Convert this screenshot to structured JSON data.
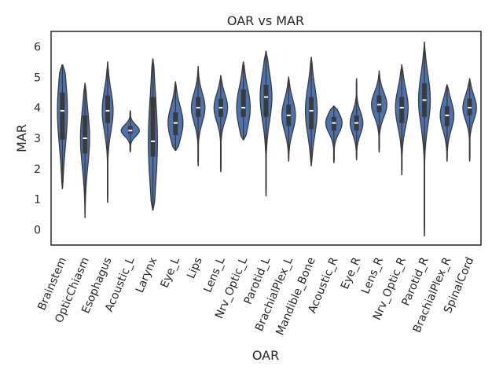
{
  "chart_data": {
    "type": "violin",
    "title": "OAR vs MAR",
    "xlabel": "OAR",
    "ylabel": "MAR",
    "ylim": [
      -0.5,
      6.5
    ],
    "yticks": [
      0,
      1,
      2,
      3,
      4,
      5,
      6
    ],
    "grid": false,
    "colors": {
      "violin_fill": "#4c72b0",
      "violin_edge": "#3a3a3a",
      "box": "#3a3a3a",
      "median": "#ffffff",
      "frame": "#262626"
    },
    "categories": [
      "Brainstem",
      "OpticChiasm",
      "Esophagus",
      "Acoustic_L",
      "Larynx",
      "Eye_L",
      "Lips",
      "Lens_L",
      "Nrv_Optic_L",
      "Parotid_L",
      "BrachialPlex_L",
      "Mandible_Bone",
      "Acoustic_R",
      "Eye_R",
      "Lens_R",
      "Nrv_Optic_R",
      "Parotid_R",
      "BrachialPlex_R",
      "SpinalCord"
    ],
    "series": [
      {
        "min": 1.35,
        "q1": 2.95,
        "median": 3.9,
        "q3": 4.5,
        "max": 5.4,
        "hw": 0.22
      },
      {
        "min": 0.4,
        "q1": 2.5,
        "median": 3.0,
        "q3": 3.75,
        "max": 4.8,
        "hw": 0.2
      },
      {
        "min": 0.9,
        "q1": 3.5,
        "median": 3.9,
        "q3": 4.4,
        "max": 5.5,
        "hw": 0.24
      },
      {
        "min": 2.55,
        "q1": 3.15,
        "median": 3.25,
        "q3": 3.4,
        "max": 3.9,
        "hw": 0.4
      },
      {
        "min": 0.65,
        "q1": 2.4,
        "median": 2.9,
        "q3": 4.35,
        "max": 5.6,
        "hw": 0.2
      },
      {
        "min": 2.6,
        "q1": 3.1,
        "median": 3.5,
        "q3": 3.85,
        "max": 4.85,
        "hw": 0.33
      },
      {
        "min": 2.1,
        "q1": 3.7,
        "median": 4.0,
        "q3": 4.35,
        "max": 5.35,
        "hw": 0.3
      },
      {
        "min": 1.9,
        "q1": 3.7,
        "median": 4.0,
        "q3": 4.3,
        "max": 5.05,
        "hw": 0.3
      },
      {
        "min": 2.95,
        "q1": 3.7,
        "median": 4.0,
        "q3": 4.6,
        "max": 5.5,
        "hw": 0.3
      },
      {
        "min": 1.1,
        "q1": 3.7,
        "median": 4.35,
        "q3": 4.75,
        "max": 5.85,
        "hw": 0.26
      },
      {
        "min": 2.25,
        "q1": 3.4,
        "median": 3.75,
        "q3": 4.1,
        "max": 5.0,
        "hw": 0.3
      },
      {
        "min": 2.1,
        "q1": 3.3,
        "median": 3.9,
        "q3": 4.35,
        "max": 5.65,
        "hw": 0.26
      },
      {
        "min": 2.2,
        "q1": 3.25,
        "median": 3.5,
        "q3": 3.7,
        "max": 4.05,
        "hw": 0.36
      },
      {
        "min": 2.3,
        "q1": 3.25,
        "median": 3.5,
        "q3": 3.75,
        "max": 4.95,
        "hw": 0.28
      },
      {
        "min": 2.55,
        "q1": 3.85,
        "median": 4.1,
        "q3": 4.4,
        "max": 5.2,
        "hw": 0.34
      },
      {
        "min": 1.8,
        "q1": 3.5,
        "median": 4.0,
        "q3": 4.35,
        "max": 5.4,
        "hw": 0.28
      },
      {
        "min": -0.2,
        "q1": 3.7,
        "median": 4.25,
        "q3": 4.8,
        "max": 6.15,
        "hw": 0.26
      },
      {
        "min": 2.25,
        "q1": 3.4,
        "median": 3.75,
        "q3": 4.05,
        "max": 4.75,
        "hw": 0.3
      },
      {
        "min": 2.25,
        "q1": 3.75,
        "median": 4.0,
        "q3": 4.3,
        "max": 4.95,
        "hw": 0.3
      }
    ]
  }
}
